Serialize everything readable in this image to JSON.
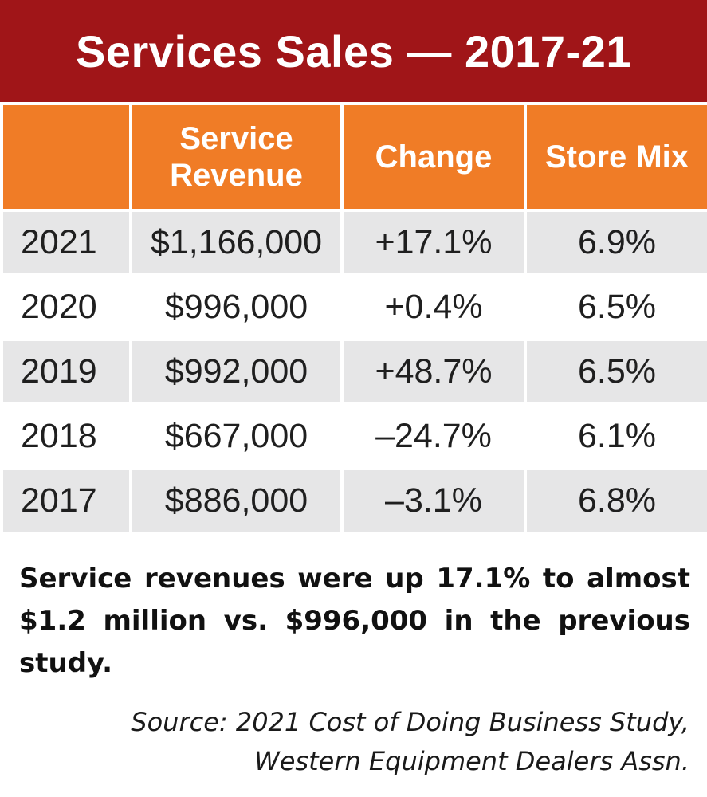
{
  "chart_data": {
    "type": "table",
    "title": "Services Sales — 2017-21",
    "columns": [
      "",
      "Service Revenue",
      "Change",
      "Store Mix"
    ],
    "rows": [
      {
        "year": "2021",
        "revenue": "$1,166,000",
        "change": "+17.1%",
        "mix": "6.9%"
      },
      {
        "year": "2020",
        "revenue": "$996,000",
        "change": "+0.4%",
        "mix": "6.5%"
      },
      {
        "year": "2019",
        "revenue": "$992,000",
        "change": "+48.7%",
        "mix": "6.5%"
      },
      {
        "year": "2018",
        "revenue": "$667,000",
        "change": "–24.7%",
        "mix": "6.1%"
      },
      {
        "year": "2017",
        "revenue": "$886,000",
        "change": "–3.1%",
        "mix": "6.8%"
      }
    ],
    "caption": "Service revenues were up 17.1% to almost $1.2 million vs. $996,000 in the previous study.",
    "source_line1": "Source: 2021 Cost of Doing Business Study,",
    "source_line2": "Western Equipment Dealers Assn."
  },
  "colors": {
    "title_bg": "#a01518",
    "header_bg": "#f07c26",
    "row_shade": "#e6e6e7"
  }
}
